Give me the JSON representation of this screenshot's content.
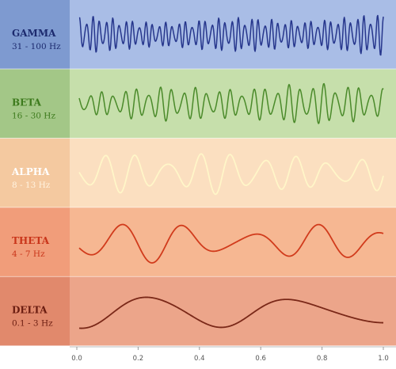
{
  "bands": [
    {
      "name": "GAMMA",
      "range": "31 - 100 Hz"
    },
    {
      "name": "BETA",
      "range": "16 - 30 Hz"
    },
    {
      "name": "ALPHA",
      "range": "8 - 13 Hz"
    },
    {
      "name": "THETA",
      "range": "4 - 7 Hz"
    },
    {
      "name": "DELTA",
      "range": "0.1 - 3 Hz"
    }
  ],
  "x_axis": {
    "range": [
      0,
      1
    ],
    "ticks": [
      {
        "value": 0,
        "label": "0.0"
      },
      {
        "value": 0.2,
        "label": "0.2"
      },
      {
        "value": 0.4,
        "label": "0.4"
      },
      {
        "value": 0.6,
        "label": "0.6"
      },
      {
        "value": 0.8,
        "label": "0.8"
      },
      {
        "value": 1,
        "label": "1.0"
      }
    ]
  }
}
